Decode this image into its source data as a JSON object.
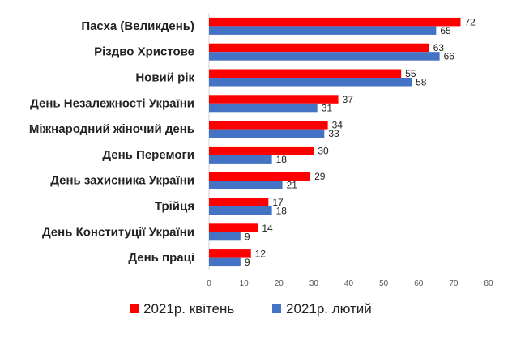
{
  "chart_data": {
    "type": "bar",
    "orientation": "horizontal",
    "categories": [
      "Пасха (Великдень)",
      "Різдво Христове",
      "Новий рік",
      "День Незалежності України",
      "Міжнародний жіночий день",
      "День Перемоги",
      "День захисника України",
      "Трійця",
      "День Конституції України",
      "День праці"
    ],
    "series": [
      {
        "name": "2021р. квітень",
        "color": "#ff0000",
        "values": [
          72,
          63,
          55,
          37,
          34,
          30,
          29,
          17,
          14,
          12
        ]
      },
      {
        "name": "2021р. лютий",
        "color": "#4472c4",
        "values": [
          65,
          66,
          58,
          31,
          33,
          18,
          21,
          18,
          9,
          9
        ]
      }
    ],
    "xlim": [
      0,
      80
    ],
    "xticks": [
      0,
      10,
      20,
      30,
      40,
      50,
      60,
      70,
      80
    ],
    "grid": false,
    "legend": "bottom"
  }
}
